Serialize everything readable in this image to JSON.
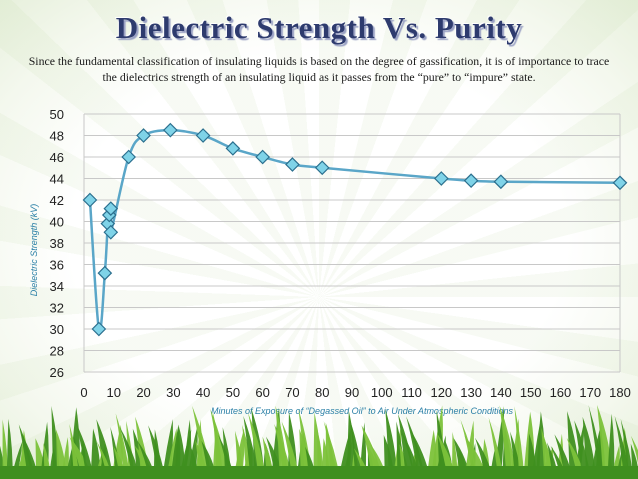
{
  "slide": {
    "title": "Dielectric Strength Vs. Purity",
    "description": "Since the fundamental classification of insulating liquids is based on the degree of gassification, it is of importance to trace the dielectrics strength of an insulating liquid as it passes from the “pure” to “impure” state."
  },
  "colors": {
    "line": "#5aa6c8",
    "marker_fill": "#7fd3e8",
    "marker_stroke": "#2b6f8e",
    "grid": "#c8c8c8",
    "axis_title": "#2a7fa6",
    "grass_dark": "#3f8f1f",
    "grass_light": "#7cc23a"
  },
  "chart_data": {
    "type": "line",
    "title": "",
    "xlabel": "Minutes of Exposure of “Degassed Oil” to Air Under Atmospheric Conditions",
    "ylabel": "Dielectric Strength (kV)",
    "xlim": [
      0,
      180
    ],
    "ylim": [
      26,
      50
    ],
    "xticks": [
      0,
      10,
      20,
      30,
      40,
      50,
      60,
      70,
      80,
      90,
      100,
      110,
      120,
      130,
      140,
      150,
      160,
      170,
      180
    ],
    "yticks": [
      26,
      28,
      30,
      32,
      34,
      36,
      38,
      40,
      42,
      44,
      46,
      48,
      50
    ],
    "grid": true,
    "series": [
      {
        "name": "Dielectric Strength",
        "points": [
          [
            2,
            42.0
          ],
          [
            5,
            30.0
          ],
          [
            7,
            35.2
          ],
          [
            8,
            39.8
          ],
          [
            8.5,
            40.6
          ],
          [
            9,
            41.2
          ],
          [
            9,
            39.0
          ],
          [
            15,
            46.0
          ],
          [
            20,
            48.0
          ],
          [
            29,
            48.5
          ],
          [
            40,
            48.0
          ],
          [
            50,
            46.8
          ],
          [
            60,
            46.0
          ],
          [
            70,
            45.3
          ],
          [
            80,
            45.0
          ],
          [
            120,
            44.0
          ],
          [
            130,
            43.8
          ],
          [
            140,
            43.7
          ],
          [
            180,
            43.6
          ]
        ]
      }
    ]
  }
}
